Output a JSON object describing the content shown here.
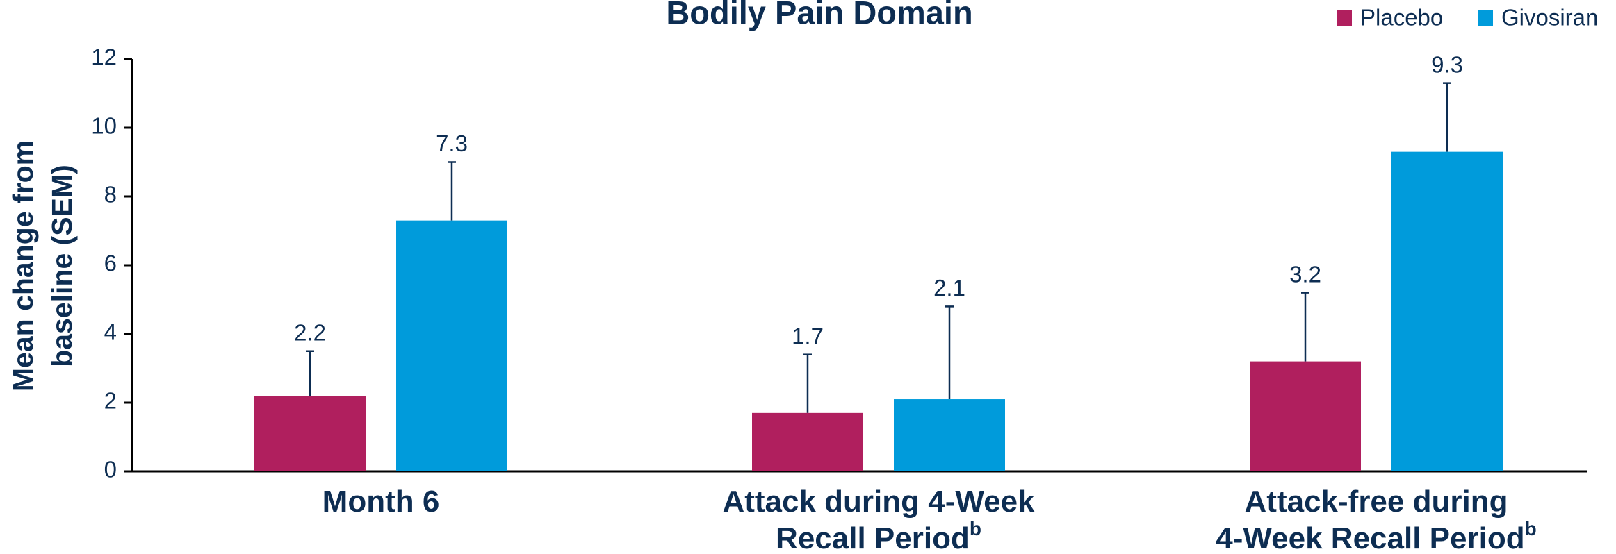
{
  "chart_data": {
    "type": "bar",
    "title": "Bodily Pain Domain",
    "ylabel": [
      "Mean change from",
      "baseline (SEM)"
    ],
    "categories": [
      [
        "Month 6"
      ],
      [
        "Attack during 4-Week",
        "Recall Period"
      ],
      [
        "Attack-free during",
        "4-Week Recall Period"
      ]
    ],
    "category_footnotes": [
      null,
      "b",
      "b"
    ],
    "series": [
      {
        "name": "Placebo",
        "color": "#b01f5e",
        "values": [
          2.2,
          1.7,
          3.2
        ],
        "errors": [
          1.3,
          1.7,
          2.0
        ]
      },
      {
        "name": "Givosiran",
        "color": "#009bdb",
        "values": [
          7.3,
          2.1,
          9.3
        ],
        "errors": [
          1.7,
          2.7,
          2.0
        ]
      }
    ],
    "ylim": [
      0,
      12
    ],
    "yticks": [
      0,
      2,
      4,
      6,
      8,
      10,
      12
    ],
    "legend": "top-right"
  }
}
